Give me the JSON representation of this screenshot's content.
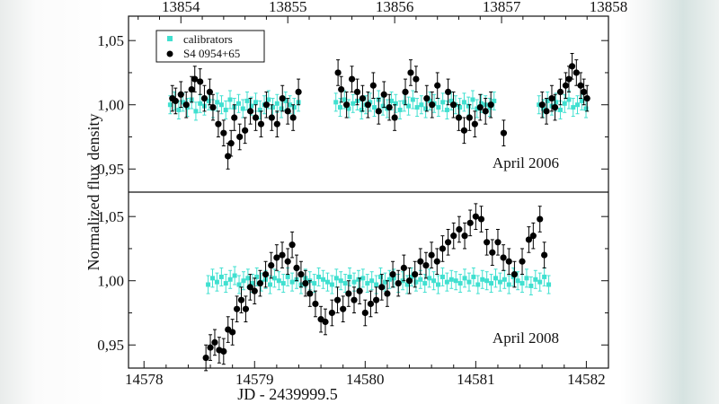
{
  "chart_data": [
    {
      "type": "scatter",
      "panel": "top",
      "annotation": "April 2006",
      "ylabel": "Normalized flux density",
      "xlim": [
        13853.51,
        13858.0
      ],
      "top_axis_ticks": [
        "13854",
        "13855",
        "13856",
        "13857",
        "13858"
      ],
      "top_axis_values": [
        13854,
        13855,
        13856,
        13857,
        13858
      ],
      "ylim": [
        0.932,
        1.069
      ],
      "y_ticks": [
        "1,05",
        "1,00",
        "0,95"
      ],
      "y_tick_values": [
        1.05,
        1.0,
        0.95
      ],
      "legend": {
        "placement": "top-left",
        "entries": [
          "calibrators",
          "S4 0954+65"
        ]
      },
      "series": [
        {
          "name": "calibrators",
          "color": "#40e0d0",
          "marker": "square",
          "err": 0.007,
          "segments": [
            {
              "x_start": 13853.9,
              "step": 0.04,
              "y": [
                1.0,
                1.003,
                0.996,
                1.002,
                0.998,
                1.004,
                0.995,
                1.001,
                0.999,
                1.003,
                0.997,
                1.002,
                1.0,
                0.996,
                1.004,
                0.998,
                1.001,
                0.997,
                1.003,
                0.999,
                1.002,
                0.996,
                1.0,
                1.004,
                0.998,
                1.001,
                0.997,
                1.003,
                1.0,
                0.998,
                1.002
              ]
            },
            {
              "x_start": 13855.45,
              "step": 0.04,
              "y": [
                1.002,
                0.998,
                1.004,
                0.997,
                1.001,
                1.003,
                0.996,
                1.0,
                1.002,
                0.998,
                1.004,
                0.999,
                0.997,
                1.003,
                1.001,
                0.996,
                1.002,
                0.999,
                1.004,
                0.998,
                1.0,
                0.997,
                1.003,
                1.001,
                0.998,
                1.002,
                0.996,
                1.003,
                1.0,
                0.998,
                1.002,
                0.999,
                1.004,
                0.997,
                1.001,
                1.0,
                0.998,
                1.003
              ]
            },
            {
              "x_start": 13857.35,
              "step": 0.04,
              "y": [
                1.0,
                0.997,
                1.003,
                0.999,
                1.002,
                0.996,
                1.001,
                1.004,
                0.998,
                1.0,
                1.003,
                0.997
              ]
            }
          ]
        },
        {
          "name": "S4 0954+65",
          "color": "#000000",
          "marker": "circle",
          "err": 0.01,
          "x": [
            13853.92,
            13853.95,
            13854.0,
            13854.05,
            13854.1,
            13854.13,
            13854.18,
            13854.22,
            13854.27,
            13854.3,
            13854.35,
            13854.4,
            13854.44,
            13854.47,
            13854.5,
            13854.55,
            13854.6,
            13854.65,
            13854.7,
            13854.75,
            13854.8,
            13854.85,
            13854.9,
            13854.95,
            13855.0,
            13855.05,
            13855.1,
            13855.47,
            13855.5,
            13855.55,
            13855.6,
            13855.65,
            13855.7,
            13855.75,
            13855.8,
            13855.85,
            13855.9,
            13855.95,
            13856.0,
            13856.1,
            13856.15,
            13856.2,
            13856.3,
            13856.35,
            13856.4,
            13856.5,
            13856.55,
            13856.6,
            13856.65,
            13856.7,
            13856.75,
            13856.8,
            13856.85,
            13856.9,
            13857.02,
            13857.38,
            13857.42,
            13857.47,
            13857.5,
            13857.55,
            13857.6,
            13857.63,
            13857.66,
            13857.7,
            13857.74,
            13857.77,
            13857.8
          ],
          "y": [
            1.005,
            1.003,
            1.008,
            1.0,
            1.012,
            1.02,
            1.018,
            1.005,
            1.01,
            0.998,
            0.985,
            0.978,
            0.96,
            0.97,
            0.99,
            0.975,
            0.98,
            0.995,
            0.99,
            0.985,
            1.0,
            0.99,
            0.985,
            1.005,
            0.995,
            0.99,
            1.01,
            1.025,
            1.012,
            1.0,
            1.02,
            1.01,
            1.005,
            1.0,
            1.015,
            0.995,
            1.008,
            0.998,
            0.99,
            1.01,
            1.025,
            1.02,
            1.005,
            1.0,
            1.015,
            1.01,
            1.0,
            0.99,
            0.98,
            0.99,
            0.985,
            0.998,
            0.995,
            1.0,
            0.978,
            1.0,
            0.995,
            1.005,
            0.998,
            1.01,
            1.015,
            1.02,
            1.03,
            1.025,
            1.015,
            1.01,
            1.005
          ]
        }
      ]
    },
    {
      "type": "scatter",
      "panel": "bottom",
      "annotation": "April 2008",
      "xlabel": "JD - 2439999.5",
      "xlim": [
        13853.51,
        13858.0
      ],
      "x_ticks": [
        "14578",
        "14579",
        "14580",
        "14581",
        "14582"
      ],
      "x_tick_values": [
        14578,
        14579,
        14580,
        14581,
        14582
      ],
      "x_range": [
        14577.86,
        14582.2
      ],
      "ylim": [
        0.932,
        1.069
      ],
      "y_ticks": [
        "1,05",
        "1,00",
        "0,95"
      ],
      "y_tick_values": [
        1.05,
        1.0,
        0.95
      ],
      "series": [
        {
          "name": "calibrators",
          "color": "#40e0d0",
          "marker": "square",
          "err": 0.007,
          "segments": [
            {
              "x_start": 14578.58,
              "step": 0.04,
              "y": [
                0.997,
                1.002,
                0.999,
                1.003,
                0.998,
                1.001,
                1.004,
                0.997,
                1.0,
                1.002,
                0.998,
                1.003,
                0.999,
                1.001,
                0.997,
                1.002,
                1.0,
                0.998,
                1.003,
                0.999,
                1.001,
                0.997,
                1.002,
                1.0,
                0.998,
                1.003,
                1.001,
                0.999,
                0.997,
                1.002,
                1.0,
                0.998,
                1.003,
                0.999,
                1.001,
                1.002,
                0.998,
                1.0,
                0.997,
                1.003,
                0.999,
                1.001,
                1.002,
                0.998,
                1.0,
                0.997,
                1.003,
                0.999,
                1.001,
                0.998,
                1.002,
                1.0,
                0.997,
                1.003,
                0.999,
                1.001,
                1.0,
                0.998,
                1.002,
                0.999,
                1.003,
                0.997,
                1.001,
                1.0,
                0.998,
                1.002,
                0.999,
                1.001,
                0.997,
                1.003,
                1.0,
                0.998,
                1.002,
                0.996,
                1.001,
                0.999,
                1.003,
                0.997
              ]
            }
          ]
        },
        {
          "name": "S4 0954+65",
          "color": "#000000",
          "marker": "circle",
          "err": 0.01,
          "x": [
            14578.56,
            14578.6,
            14578.64,
            14578.68,
            14578.72,
            14578.76,
            14578.8,
            14578.84,
            14578.88,
            14578.92,
            14578.96,
            14579.0,
            14579.05,
            14579.1,
            14579.15,
            14579.2,
            14579.25,
            14579.3,
            14579.34,
            14579.38,
            14579.42,
            14579.46,
            14579.5,
            14579.55,
            14579.6,
            14579.64,
            14579.7,
            14579.75,
            14579.8,
            14579.85,
            14579.9,
            14579.95,
            14580.0,
            14580.05,
            14580.1,
            14580.15,
            14580.2,
            14580.25,
            14580.3,
            14580.35,
            14580.4,
            14580.45,
            14580.5,
            14580.55,
            14580.6,
            14580.65,
            14580.7,
            14580.75,
            14580.8,
            14580.85,
            14580.9,
            14580.95,
            14581.0,
            14581.05,
            14581.1,
            14581.15,
            14581.2,
            14581.25,
            14581.3,
            14581.35,
            14581.42,
            14581.48,
            14581.52,
            14581.58,
            14581.62
          ],
          "y": [
            0.94,
            0.948,
            0.952,
            0.946,
            0.945,
            0.962,
            0.96,
            0.978,
            0.985,
            0.978,
            0.995,
            0.992,
            0.998,
            1.005,
            1.012,
            1.018,
            1.02,
            1.015,
            1.028,
            1.01,
            1.005,
            0.998,
            0.99,
            0.982,
            0.97,
            0.968,
            0.975,
            0.985,
            0.978,
            0.99,
            0.985,
            0.992,
            0.975,
            0.982,
            0.985,
            0.995,
            0.99,
            1.005,
            0.998,
            1.01,
            1.0,
            1.005,
            1.015,
            1.012,
            1.02,
            1.015,
            1.025,
            1.03,
            1.035,
            1.04,
            1.035,
            1.045,
            1.05,
            1.048,
            1.03,
            1.022,
            1.03,
            1.018,
            1.015,
            1.005,
            1.015,
            1.032,
            1.035,
            1.048,
            1.02
          ]
        }
      ]
    }
  ]
}
